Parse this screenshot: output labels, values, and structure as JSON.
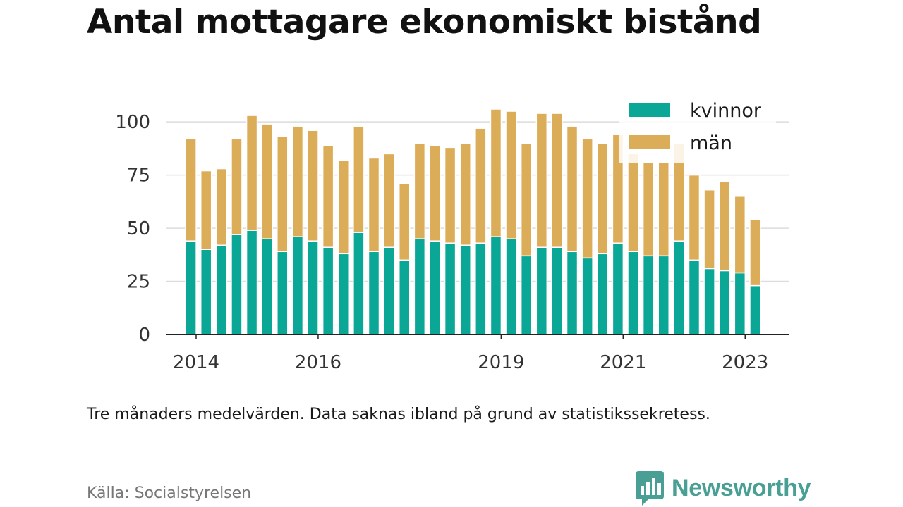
{
  "title": "Antal mottagare ekonomiskt bistånd",
  "note": "Tre månaders medelvärden. Data saknas ibland på grund av statistikssekretess.",
  "source": "Källa: Socialstyrelsen",
  "brand": "Newsworthy",
  "colors": {
    "kvinnor": "#0aa696",
    "man": "#dcad58",
    "brand": "#4a9f94"
  },
  "chart_data": {
    "type": "bar",
    "stacked": true,
    "legend": {
      "position": "top-right"
    },
    "ylim": [
      0,
      107
    ],
    "yticks": [
      0,
      25,
      50,
      75,
      100
    ],
    "xlim": [
      2014,
      2024.2
    ],
    "xticks": [
      2014,
      2016,
      2019,
      2021,
      2023
    ],
    "grid": true,
    "x": [
      2014.4,
      2014.65,
      2014.9,
      2015.15,
      2015.4,
      2015.65,
      2015.9,
      2016.15,
      2016.4,
      2016.65,
      2016.9,
      2017.15,
      2017.4,
      2017.65,
      2017.9,
      2018.15,
      2018.4,
      2018.65,
      2018.9,
      2019.15,
      2019.4,
      2019.65,
      2019.9,
      2020.15,
      2020.4,
      2020.65,
      2020.9,
      2021.15,
      2021.4,
      2021.65,
      2021.9,
      2022.15,
      2022.4,
      2022.65,
      2022.9,
      2023.15,
      2023.4,
      2023.65
    ],
    "series": [
      {
        "name": "kvinnor",
        "values": [
          44,
          40,
          42,
          47,
          49,
          45,
          39,
          46,
          44,
          41,
          38,
          48,
          39,
          41,
          35,
          45,
          44,
          43,
          42,
          43,
          46,
          45,
          37,
          41,
          41,
          39,
          36,
          38,
          43,
          39,
          37,
          37,
          44,
          35,
          31,
          30,
          29,
          23
        ]
      },
      {
        "name": "män",
        "values": [
          48,
          37,
          36,
          45,
          54,
          54,
          54,
          52,
          52,
          48,
          44,
          50,
          44,
          44,
          36,
          45,
          45,
          45,
          48,
          54,
          60,
          60,
          53,
          63,
          63,
          59,
          56,
          52,
          51,
          46,
          44,
          44,
          46,
          40,
          37,
          42,
          36,
          31
        ]
      }
    ]
  }
}
